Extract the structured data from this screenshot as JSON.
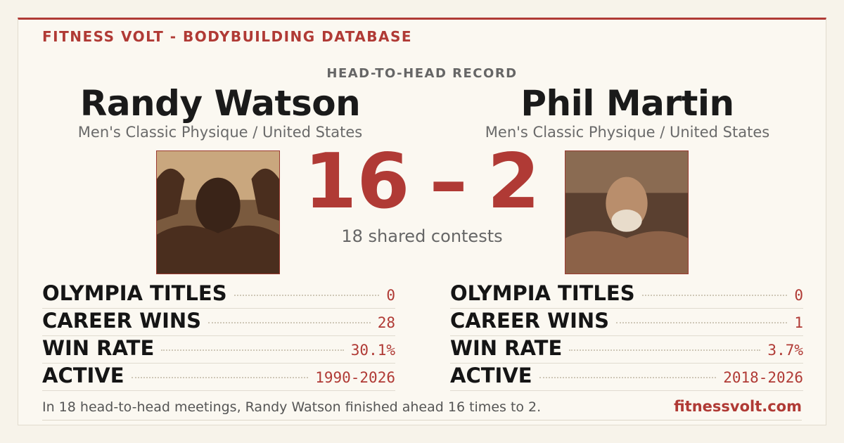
{
  "header": {
    "brand": "FITNESS VOLT - BODYBUILDING DATABASE",
    "kicker": "HEAD-TO-HEAD RECORD"
  },
  "athletes": [
    {
      "name": "Randy Watson",
      "division": "Men's Classic Physique / United States",
      "stats": [
        {
          "label": "OLYMPIA TITLES",
          "value": 0
        },
        {
          "label": "CAREER WINS",
          "value": 28
        },
        {
          "label": "WIN RATE",
          "value": "30.1%"
        },
        {
          "label": "ACTIVE",
          "value": "1990-2026"
        }
      ]
    },
    {
      "name": "Phil Martin",
      "division": "Men's Classic Physique / United States",
      "stats": [
        {
          "label": "OLYMPIA TITLES",
          "value": 0
        },
        {
          "label": "CAREER WINS",
          "value": 1
        },
        {
          "label": "WIN RATE",
          "value": "3.7%"
        },
        {
          "label": "ACTIVE",
          "value": "2018-2026"
        }
      ]
    }
  ],
  "score": {
    "left": 16,
    "separator": "–",
    "right": 2,
    "caption": "18 shared contests"
  },
  "footer": {
    "summary": "In 18 head-to-head meetings, Randy Watson finished ahead 16 times to 2.",
    "site": "fitnessvolt.com"
  }
}
